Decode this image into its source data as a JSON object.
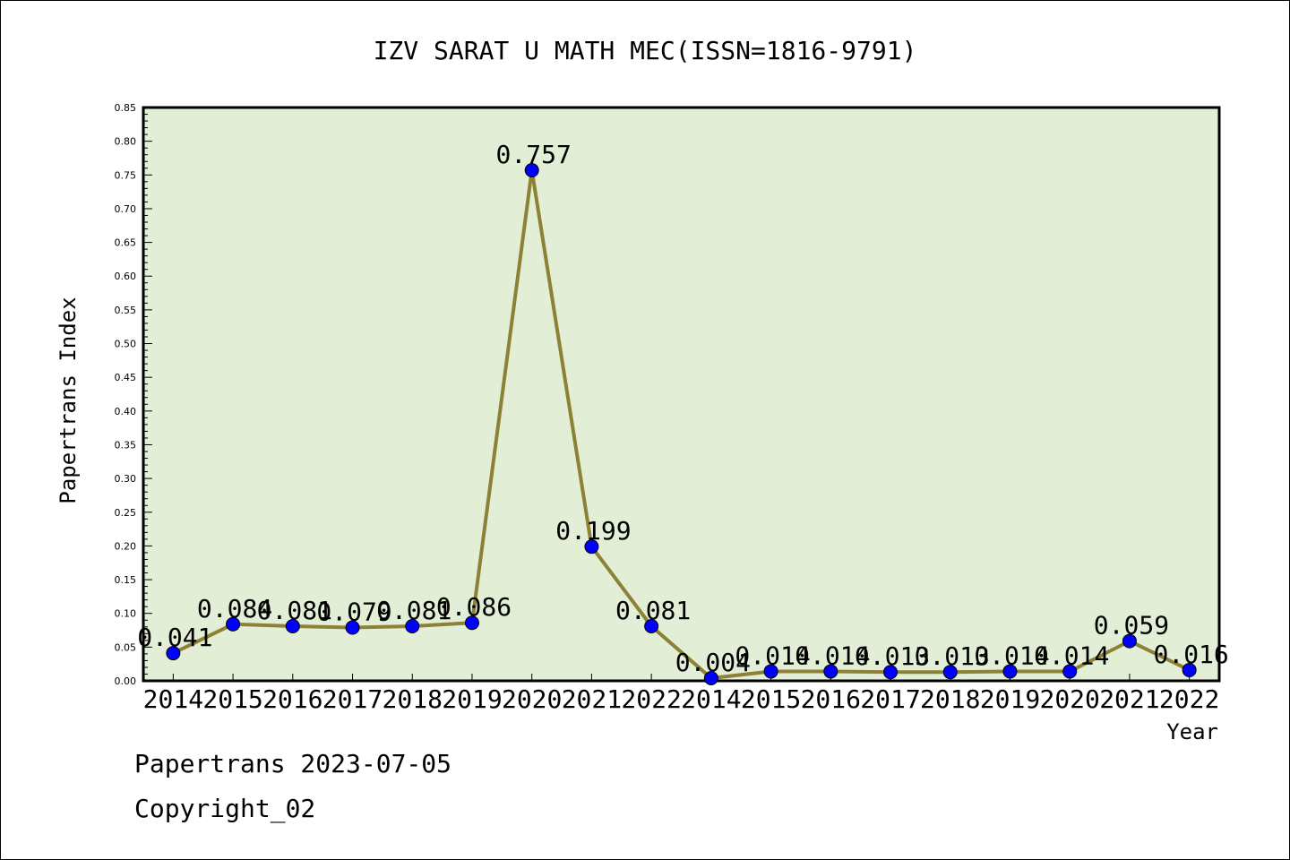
{
  "colors": {
    "plot_background": "#e2efd6",
    "line": "#8c8136",
    "marker": "#0000ff",
    "axis": "#000000"
  },
  "footer": {
    "date_line": "Papertrans 2023-07-05",
    "copyright": "Copyright_02"
  },
  "chart_data": {
    "type": "line",
    "title": "IZV SARAT U MATH MEC(ISSN=1816-9791)",
    "xlabel": "Year",
    "ylabel": "Papertrans Index",
    "ylim": [
      0,
      0.85
    ],
    "yticks": [
      "0.00",
      "0.05",
      "0.10",
      "0.15",
      "0.20",
      "0.25",
      "0.30",
      "0.35",
      "0.40",
      "0.45",
      "0.50",
      "0.55",
      "0.60",
      "0.65",
      "0.70",
      "0.75",
      "0.80",
      "0.85"
    ],
    "grid": false,
    "legend": "none",
    "categories": [
      "2014",
      "2015",
      "2016",
      "2017",
      "2018",
      "2019",
      "2020",
      "2021",
      "2022",
      "2014",
      "2015",
      "2016",
      "2017",
      "2018",
      "2019",
      "2020",
      "2021",
      "2022"
    ],
    "series": [
      {
        "values": [
          0.041,
          0.084,
          0.081,
          0.079,
          0.081,
          0.086,
          0.757,
          0.199,
          0.081,
          0.004,
          0.014,
          0.014,
          0.013,
          0.013,
          0.014,
          0.014,
          0.059,
          0.016
        ],
        "labels": [
          "0.041",
          "0.084",
          "0.081",
          "0.079",
          "0.081",
          "0.086",
          "0.757",
          "0.199",
          "0.081",
          "0.004",
          "0.014",
          "0.014",
          "0.013",
          "0.013",
          "0.014",
          "0.014",
          "0.059",
          "0.016"
        ]
      }
    ]
  }
}
